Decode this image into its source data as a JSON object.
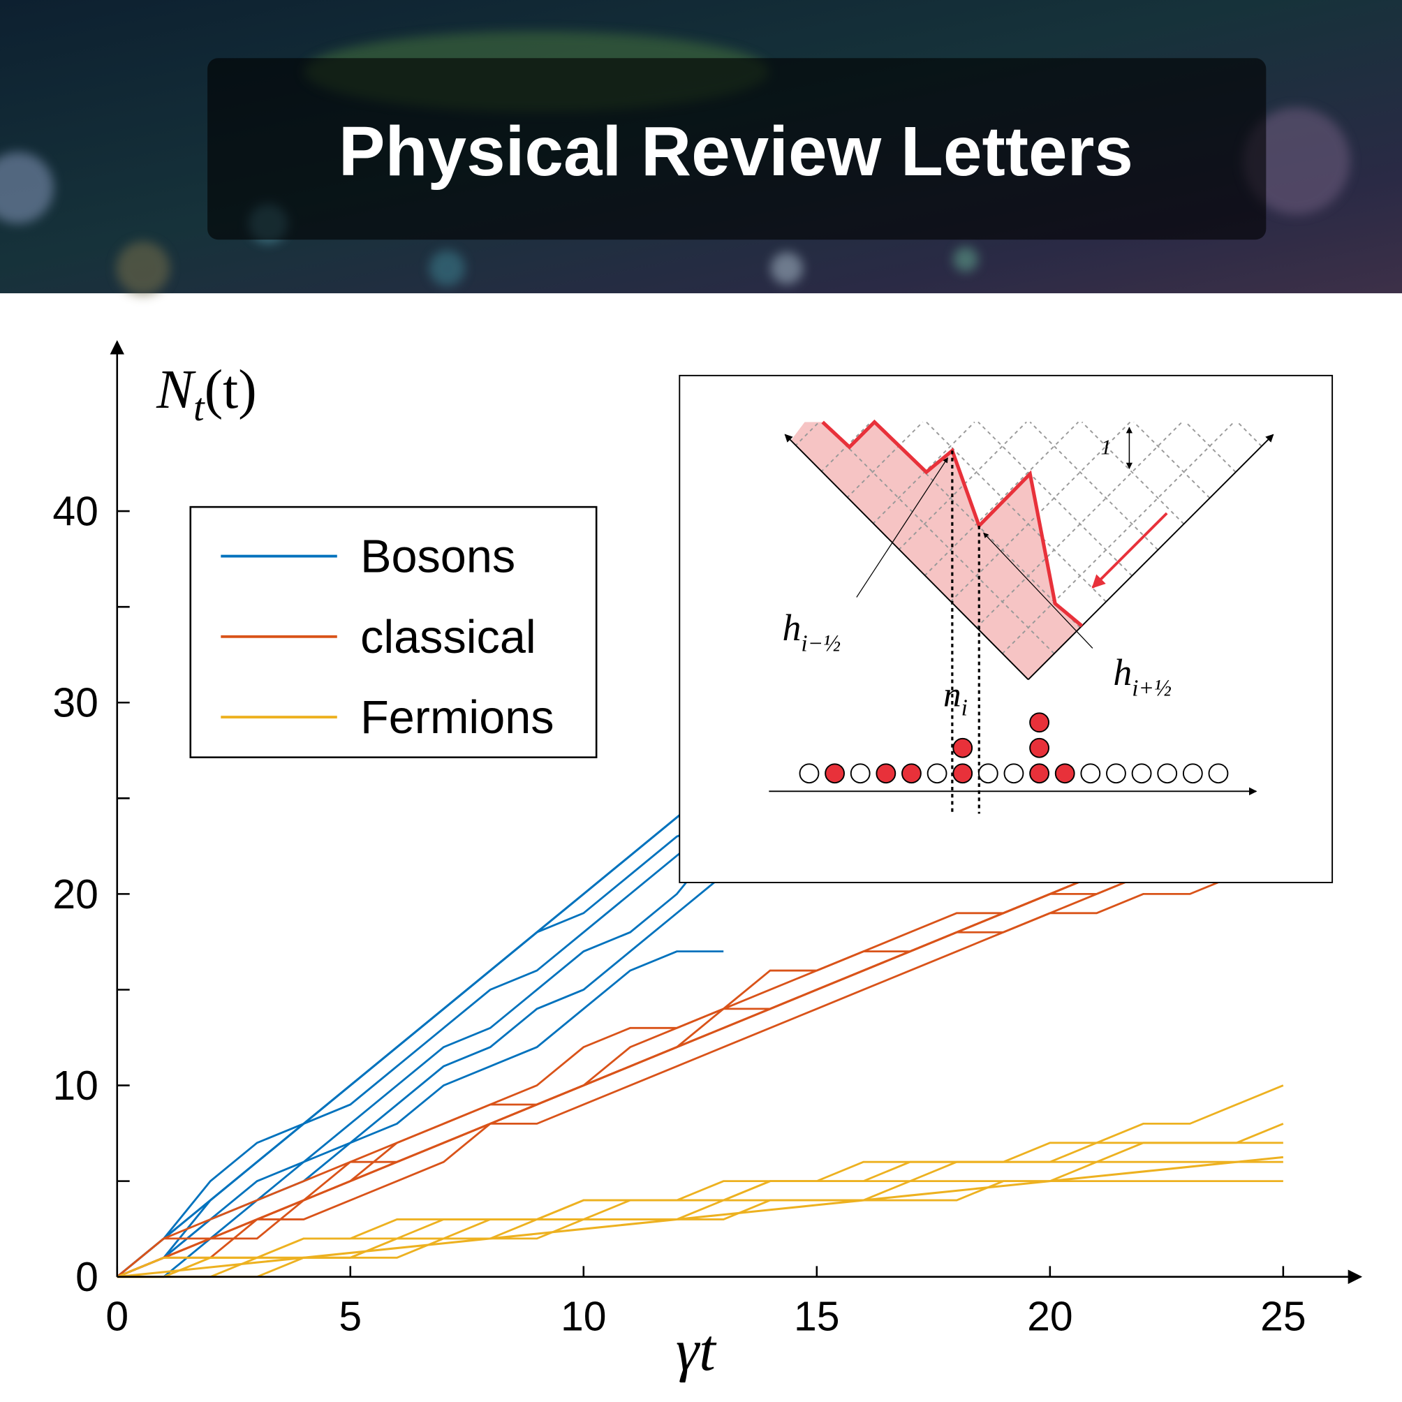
{
  "header": {
    "title": "Physical Review Letters"
  },
  "chart_data": {
    "type": "line",
    "x_label": "γt",
    "y_label": {
      "base": "N",
      "sub": "t",
      "rest": "(t)"
    },
    "xlim": [
      0,
      26.6
    ],
    "ylim": [
      0,
      49
    ],
    "xticks": [
      0,
      5,
      10,
      15,
      20,
      25
    ],
    "yticks": [
      0,
      10,
      20,
      30,
      40
    ],
    "yminor": [
      5,
      15,
      25,
      35
    ],
    "legend": "upper left",
    "series": [
      {
        "name": "Bosons",
        "color": "#0072bd",
        "x": [
          0,
          1,
          2,
          3,
          4,
          5,
          6,
          7,
          8,
          9,
          10,
          11,
          12,
          13
        ],
        "runs": [
          [
            0,
            1,
            4,
            6,
            8,
            10,
            12,
            14,
            16,
            18,
            19,
            21,
            23,
            24
          ],
          [
            0,
            2,
            5,
            7,
            8,
            9,
            11,
            13,
            15,
            16,
            18,
            20,
            22,
            24
          ],
          [
            0,
            1,
            3,
            5,
            6,
            8,
            10,
            12,
            13,
            15,
            17,
            18,
            20,
            23
          ],
          [
            0,
            0,
            2,
            4,
            6,
            7,
            9,
            11,
            12,
            14,
            15,
            17,
            19,
            21
          ],
          [
            0,
            1,
            3,
            4,
            5,
            7,
            8,
            10,
            11,
            12,
            14,
            16,
            17,
            17
          ]
        ],
        "mean": [
          0,
          2,
          4,
          6,
          8,
          10,
          12,
          14,
          16,
          18,
          20,
          22,
          24,
          26
        ]
      },
      {
        "name": "classical",
        "color": "#d95319",
        "x": [
          0,
          1,
          2,
          3,
          4,
          5,
          6,
          7,
          8,
          9,
          10,
          11,
          12,
          13,
          14,
          15,
          16,
          17,
          18,
          19,
          20,
          21,
          22,
          23,
          24,
          25
        ],
        "runs": [
          [
            0,
            2,
            3,
            4,
            5,
            6,
            7,
            8,
            9,
            10,
            12,
            13,
            13,
            14,
            16,
            16,
            17,
            18,
            19,
            19,
            20,
            21,
            21,
            22,
            23,
            24
          ],
          [
            0,
            1,
            2,
            3,
            4,
            5,
            6,
            7,
            8,
            9,
            10,
            11,
            12,
            13,
            14,
            15,
            16,
            17,
            18,
            19,
            20,
            20,
            21,
            21,
            22,
            23
          ],
          [
            0,
            1,
            2,
            2,
            4,
            5,
            7,
            8,
            9,
            9,
            10,
            12,
            13,
            14,
            15,
            16,
            17,
            17,
            18,
            19,
            20,
            21,
            22,
            23,
            24,
            25
          ],
          [
            0,
            1,
            1,
            3,
            3,
            4,
            5,
            6,
            8,
            8,
            9,
            10,
            11,
            12,
            13,
            14,
            15,
            16,
            17,
            18,
            19,
            19,
            20,
            20,
            21,
            21
          ],
          [
            0,
            2,
            2,
            3,
            4,
            6,
            6,
            7,
            8,
            9,
            10,
            11,
            12,
            14,
            14,
            15,
            16,
            17,
            18,
            18,
            19,
            20,
            21,
            22,
            22,
            23
          ]
        ],
        "mean": [
          0,
          1,
          2,
          3,
          4,
          5,
          6,
          7,
          8,
          9,
          10,
          11,
          12,
          13,
          14,
          15,
          16,
          17,
          18,
          19,
          20,
          21,
          22,
          23,
          24,
          25
        ]
      },
      {
        "name": "Fermions",
        "color": "#edb120",
        "x": [
          0,
          1,
          2,
          3,
          4,
          5,
          6,
          7,
          8,
          9,
          10,
          11,
          12,
          13,
          14,
          15,
          16,
          17,
          18,
          19,
          20,
          21,
          22,
          23,
          24,
          25
        ],
        "runs": [
          [
            0,
            0,
            1,
            1,
            2,
            2,
            3,
            3,
            3,
            3,
            4,
            4,
            4,
            5,
            5,
            5,
            6,
            6,
            6,
            6,
            7,
            7,
            8,
            8,
            9,
            10
          ],
          [
            0,
            0,
            0,
            1,
            1,
            1,
            2,
            2,
            3,
            3,
            3,
            4,
            4,
            4,
            5,
            5,
            5,
            5,
            6,
            6,
            6,
            7,
            7,
            7,
            7,
            8
          ],
          [
            0,
            1,
            1,
            1,
            2,
            2,
            2,
            3,
            3,
            3,
            4,
            4,
            4,
            4,
            5,
            5,
            5,
            6,
            6,
            6,
            6,
            6,
            7,
            7,
            7,
            7
          ],
          [
            0,
            0,
            0,
            0,
            1,
            1,
            1,
            2,
            2,
            2,
            3,
            3,
            3,
            4,
            4,
            4,
            4,
            5,
            5,
            5,
            5,
            6,
            6,
            6,
            6,
            6
          ],
          [
            0,
            0,
            1,
            1,
            1,
            1,
            2,
            2,
            2,
            3,
            3,
            3,
            3,
            3,
            4,
            4,
            4,
            4,
            4,
            5,
            5,
            5,
            5,
            5,
            5,
            5
          ]
        ],
        "mean": [
          0,
          0.25,
          0.5,
          0.75,
          1,
          1.25,
          1.5,
          1.75,
          2,
          2.25,
          2.5,
          2.75,
          3,
          3.25,
          3.5,
          3.75,
          4,
          4.25,
          4.5,
          4.75,
          5,
          5.25,
          5.5,
          5.75,
          6,
          6.25
        ]
      }
    ]
  },
  "inset": {
    "scale_label": "1",
    "h_left": {
      "base": "h",
      "sub": "i−½"
    },
    "h_right": {
      "base": "h",
      "sub": "i+½"
    },
    "n_label": {
      "base": "n",
      "sub": "i"
    }
  }
}
